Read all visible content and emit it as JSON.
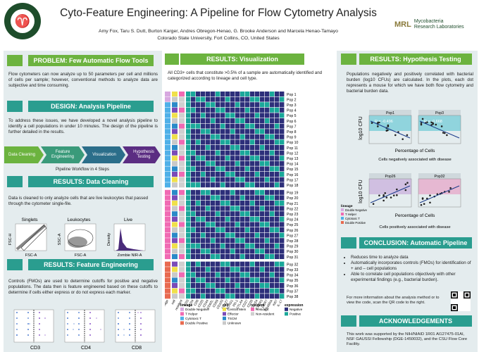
{
  "title": "Cyto-Feature Engineering: A Pipeline for Flow Cytometry Analysis",
  "authors": "Amy Fox, Taru S. Dutt, Burton Karger, Andres Obregon-Henao, G. Brooke Anderson and Marcela Henao-Tamayo",
  "affiliation": "Colorado State University, Fort Collins, CO, United States",
  "logo_right": {
    "mark": "MRL",
    "line1": "Mycobacteria",
    "line2": "Research Laboratories"
  },
  "problem": {
    "heading": "PROBLEM: Few Automatic Flow Tools",
    "text": "Flow cytometers can now analyze up to 50 parameters per cell and millions of cells per sample; however, conventional methods to analyze data are subjective and time consuming."
  },
  "design": {
    "heading": "DESIGN: Analysis Pipeline",
    "text": "To address these issues, we have developed a novel analysis pipeline to identify a cell populations in under 10 minutes. The design of the pipeline is further detailed in the results.",
    "steps": [
      "Data Cleaning",
      "Feature Engineering",
      "Visualization",
      "Hypothesis Testing"
    ],
    "caption": "Pipeline Workflow in 4 Steps",
    "step_colors": [
      "#6cb33f",
      "#3a9a7a",
      "#2b6e8a",
      "#5b2d82"
    ]
  },
  "cleaning": {
    "heading": "RESULTS: Data Cleaning",
    "text": "Data is cleaned to only analyze cells that are live leukocytes that passed through the cytometer single-file.",
    "plots": [
      {
        "title": "Singlets",
        "x": "FSC-A",
        "y": "FSC-H"
      },
      {
        "title": "Leukocytes",
        "x": "FSC-A",
        "y": "SSC-A"
      },
      {
        "title": "Live",
        "x": "Zombie NIR-A",
        "y": "Density"
      }
    ]
  },
  "feature": {
    "heading": "RESULTS: Feature Engineering",
    "text": "Controls (FMOs) are used to determine cutoffs for positive and negative populations. The data then is feature engineered based on these cutoffs to determine if cells either express or do not express each marker.",
    "plots": [
      "CD3",
      "CD4",
      "CD8"
    ]
  },
  "visualization": {
    "heading": "RESULTS: Visualization",
    "text": "All CD3+ cells that constitute >0.5% of a sample are automatically identified and categorized according to lineage and cell type.",
    "pops": [
      "Pop 1",
      "Pop 2",
      "Pop 3",
      "Pop 4",
      "Pop 5",
      "Pop 6",
      "Pop 7",
      "Pop 8",
      "Pop 9",
      "Pop 10",
      "Pop 11",
      "Pop 12",
      "Pop 13",
      "Pop 14",
      "Pop 15",
      "Pop 16",
      "Pop 17",
      "Pop 18",
      "Pop 19",
      "Pop 20",
      "Pop 21",
      "Pop 22",
      "Pop 23",
      "Pop 24",
      "Pop 25",
      "Pop 26",
      "Pop 27",
      "Pop 28",
      "Pop 29",
      "Pop 30",
      "Pop 31",
      "Pop 32",
      "Pop 33",
      "Pop 34",
      "Pop 35",
      "Pop 36",
      "Pop 37",
      "Pop 38"
    ],
    "markers": [
      "CD3",
      "CD4",
      "CD8",
      "CD25",
      "CD44",
      "CD62L",
      "CD69",
      "CD103",
      "CD127",
      "KLRG1",
      "PD-1",
      "CTLA4",
      "CD27",
      "CD28",
      "CD154",
      "CXCR3",
      "CCR7",
      "CD45RA",
      "Ki67",
      "IL-17"
    ],
    "side_cols": [
      "lineage",
      "cell",
      "resident"
    ],
    "legends": [
      {
        "title": "lineage",
        "items": [
          {
            "label": "Double Negative",
            "color": "#d7a8e0"
          },
          {
            "label": "T Helper",
            "color": "#f06ab3"
          },
          {
            "label": "Cytotoxic T",
            "color": "#4fb0e8"
          },
          {
            "label": "Double Positive",
            "color": "#e86a50"
          }
        ]
      },
      {
        "title": "cell",
        "items": [
          {
            "label": "Central Mem",
            "color": "#f0e04a"
          },
          {
            "label": "Effector",
            "color": "#7a4bb8"
          },
          {
            "label": "TSCM",
            "color": "#2a8ac8"
          },
          {
            "label": "Unknown",
            "color": "#c9c9c9"
          }
        ]
      },
      {
        "title": "resident",
        "items": [
          {
            "label": "Resident",
            "color": "#f06ab3"
          },
          {
            "label": "Non-resident",
            "color": "#cfcfcf"
          }
        ]
      },
      {
        "title": "expression",
        "items": [
          {
            "label": "Negative",
            "color": "#2d2f7a"
          },
          {
            "label": "Positive",
            "color": "#1aa89a"
          }
        ]
      }
    ]
  },
  "hypothesis": {
    "heading": "RESULTS: Hypothesis Testing",
    "text": "Populations negatively and positively correlated with bacterial burden (log10 CFUs) are calculated. In the plots, each dot represents a mouse for which we have both flow cytometry and bacterial burden data.",
    "ylabel": "log10 CFU",
    "xlabel": "Percentage of Cells",
    "neg_caption": "Cells negatively associated with disease",
    "pos_caption": "Cells positively associated with disease",
    "panels_neg": [
      {
        "title": "Pop1",
        "r": "R = -0.496"
      },
      {
        "title": "Pop3",
        "r": "R = -0.668"
      }
    ],
    "panels_pos": [
      {
        "title": "Pop26",
        "r": ""
      },
      {
        "title": "Pop32",
        "r": ""
      }
    ],
    "lineage_legend": {
      "title": "lineage",
      "items": [
        "Double Negative",
        "T Helper",
        "Cytotoxic T",
        "Double Positive"
      ]
    }
  },
  "conclusion": {
    "heading": "CONCLUSION: Automatic Pipeline",
    "bullets": [
      "Reduces time to analyze data",
      "Automatically incorporates controls (FMOs) for identification of + and – cell populations",
      "Able to correlate cell populations objectively with other experimental findings (e.g., bacterial burden)."
    ],
    "qr_text": "For more information about the analysis method or to view the code, scan the QR code to the right."
  },
  "ack": {
    "heading": "ACKNOWLEDGEMENTS",
    "text": "This work was supported by the NIH/NIAID 1R01 AI127475-01AI, NSF GAUSSI Fellowship (DGE-1450032), and the CSU Flow Core Facility."
  }
}
